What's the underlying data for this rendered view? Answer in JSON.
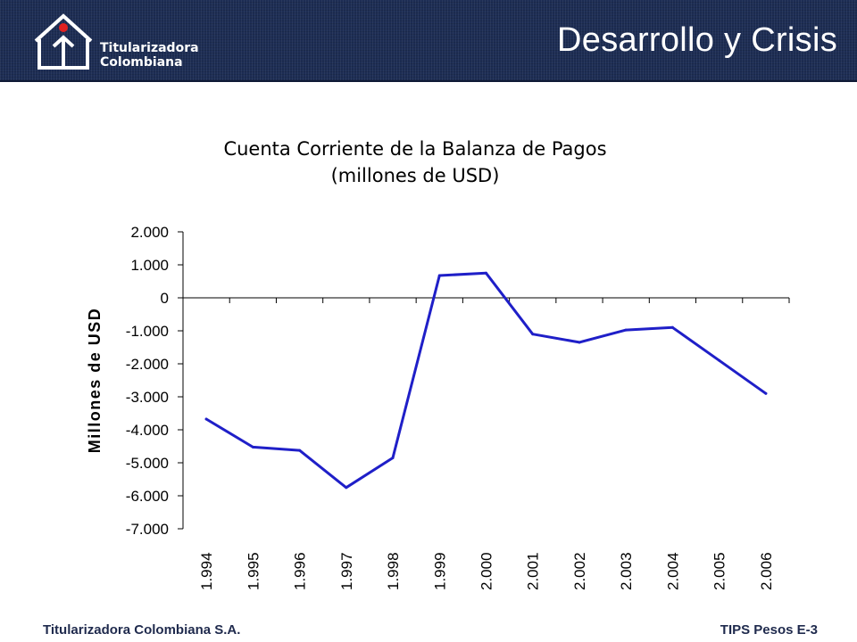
{
  "header": {
    "logo_line1": "Titularizadora",
    "logo_line2": "Colombiana",
    "title": "Desarrollo y Crisis"
  },
  "footer": {
    "left": "Titularizadora Colombiana S.A.",
    "right": "TIPS Pesos E-3"
  },
  "colors": {
    "header_bg": "#1d2d54",
    "series_line": "#1f1fc8",
    "logo_dot": "#e02020"
  },
  "chart_data": {
    "type": "line",
    "title": "Cuenta Corriente de la Balanza de Pagos",
    "subtitle": "(millones de USD)",
    "ylabel": "Millones de USD",
    "xlabel": "",
    "categories": [
      "1.994",
      "1.995",
      "1.996",
      "1.997",
      "1.998",
      "1.999",
      "2.000",
      "2.001",
      "2.002",
      "2.003",
      "2.004",
      "2.005",
      "2.006"
    ],
    "series": [
      {
        "values": [
          -3675,
          -4525,
          -4625,
          -5750,
          -4850,
          675,
          750,
          -1100,
          -1350,
          -975,
          -900,
          -1900,
          -2900
        ]
      }
    ],
    "yticks": [
      2000,
      1000,
      0,
      -1000,
      -2000,
      -3000,
      -4000,
      -5000,
      -6000,
      -7000
    ],
    "ytick_labels": [
      "2.000",
      "1.000",
      "0",
      "-1.000",
      "-2.000",
      "-3.000",
      "-4.000",
      "-5.000",
      "-6.000",
      "-7.000"
    ],
    "ylim": [
      -7000,
      2000
    ],
    "grid": false,
    "legend": "none"
  }
}
